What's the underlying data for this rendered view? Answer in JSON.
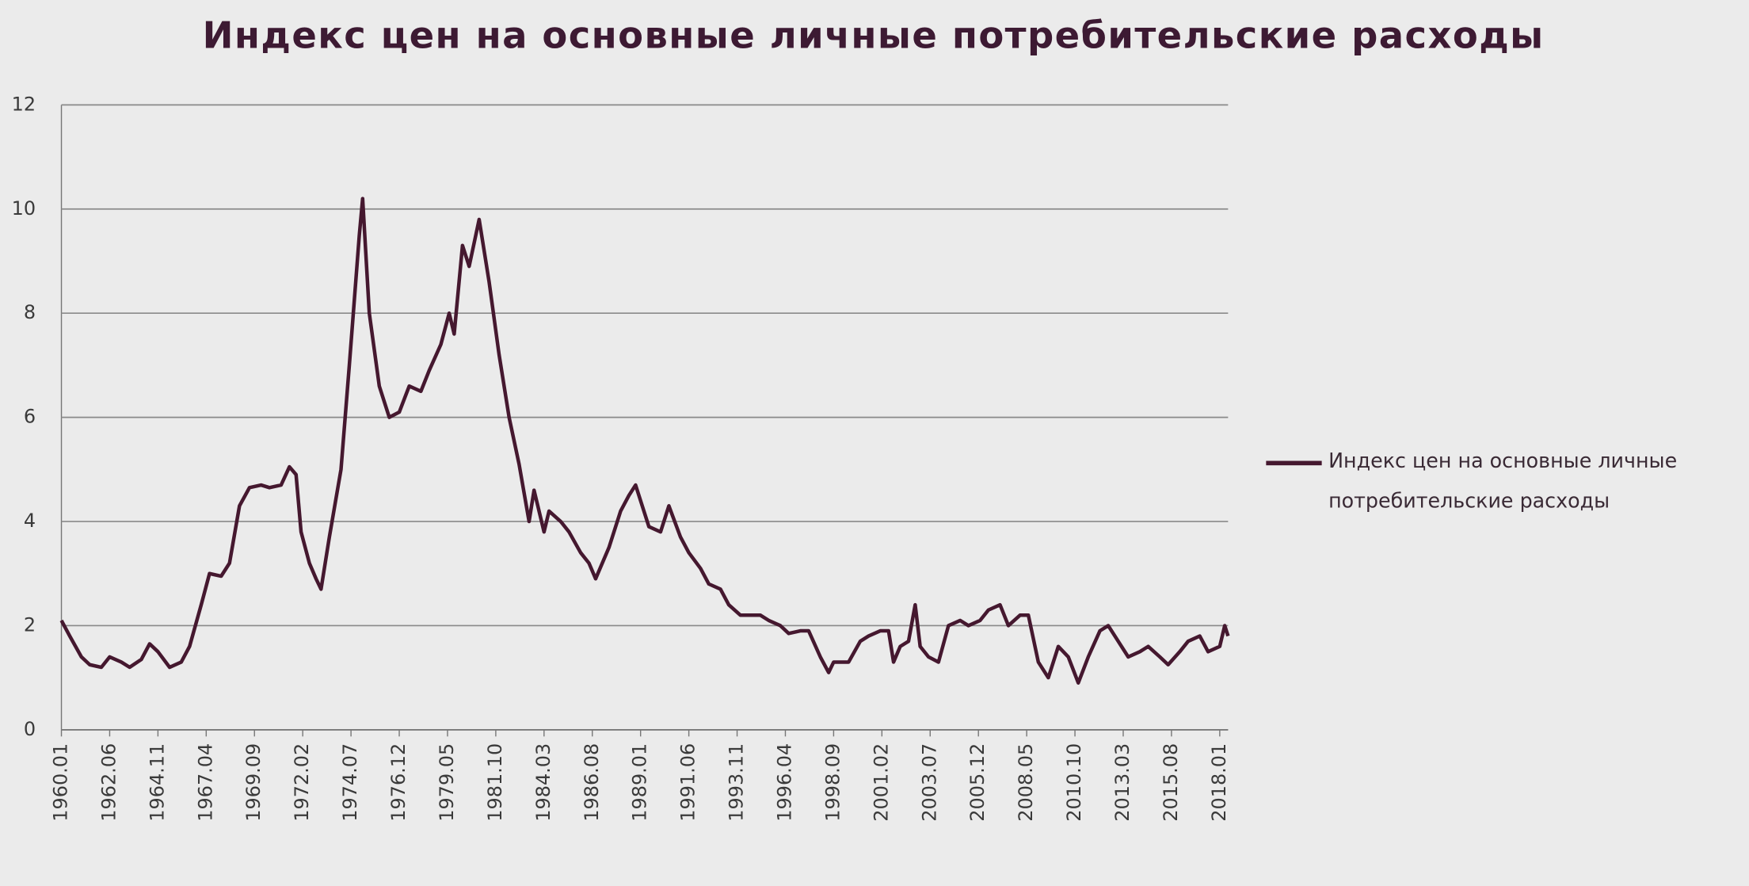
{
  "chart_data": {
    "type": "line",
    "title": "Индекс цен на основные личные потребительские расходы",
    "x": [
      "1960.01",
      "1960.06",
      "1961.01",
      "1961.06",
      "1962.01",
      "1962.06",
      "1963.01",
      "1963.06",
      "1964.01",
      "1964.06",
      "1964.11",
      "1965.06",
      "1966.01",
      "1966.06",
      "1967.01",
      "1967.06",
      "1968.01",
      "1968.06",
      "1968.12",
      "1969.06",
      "1970.01",
      "1970.06",
      "1971.01",
      "1971.06",
      "1971.10",
      "1972.01",
      "1972.06",
      "1972.10",
      "1973.01",
      "1973.06",
      "1974.01",
      "1974.06",
      "1974.12",
      "1975.02",
      "1975.06",
      "1975.12",
      "1976.06",
      "1976.12",
      "1977.06",
      "1978.01",
      "1978.06",
      "1979.01",
      "1979.06",
      "1979.09",
      "1980.02",
      "1980.06",
      "1980.12",
      "1981.06",
      "1981.12",
      "1982.06",
      "1982.12",
      "1983.06",
      "1983.09",
      "1984.03",
      "1984.06",
      "1985.01",
      "1985.06",
      "1986.01",
      "1986.06",
      "1986.10",
      "1987.06",
      "1988.01",
      "1988.06",
      "1988.10",
      "1989.06",
      "1990.01",
      "1990.06",
      "1991.01",
      "1991.06",
      "1992.01",
      "1992.06",
      "1993.01",
      "1993.06",
      "1994.01",
      "1994.06",
      "1995.01",
      "1995.06",
      "1996.01",
      "1996.06",
      "1997.01",
      "1997.06",
      "1998.01",
      "1998.06",
      "1998.09",
      "1999.06",
      "2000.01",
      "2000.06",
      "2001.01",
      "2001.06",
      "2001.09",
      "2002.01",
      "2002.06",
      "2002.10",
      "2003.01",
      "2003.06",
      "2003.12",
      "2004.06",
      "2005.01",
      "2005.06",
      "2006.01",
      "2006.06",
      "2007.01",
      "2007.06",
      "2008.01",
      "2008.06",
      "2008.12",
      "2009.06",
      "2009.12",
      "2010.06",
      "2010.12",
      "2011.06",
      "2012.01",
      "2012.06",
      "2012.12",
      "2013.06",
      "2014.01",
      "2014.06",
      "2015.01",
      "2015.06",
      "2016.01",
      "2016.06",
      "2017.01",
      "2017.06",
      "2018.01",
      "2018.04",
      "2018.06"
    ],
    "series": [
      {
        "name": "Индекс цен на основные личные потребительские расходы",
        "color": "#45182f",
        "values": [
          2.1,
          1.8,
          1.4,
          1.25,
          1.2,
          1.4,
          1.3,
          1.2,
          1.35,
          1.65,
          1.5,
          1.2,
          1.3,
          1.6,
          2.4,
          3.0,
          2.95,
          3.2,
          4.3,
          4.65,
          4.7,
          4.65,
          4.7,
          5.05,
          4.9,
          3.8,
          3.2,
          2.9,
          2.7,
          3.7,
          5.0,
          7.0,
          9.5,
          10.2,
          8.0,
          6.6,
          6.0,
          6.1,
          6.6,
          6.5,
          6.9,
          7.4,
          8.0,
          7.6,
          9.3,
          8.9,
          9.8,
          8.6,
          7.2,
          6.0,
          5.1,
          4.0,
          4.6,
          3.8,
          4.2,
          4.0,
          3.8,
          3.4,
          3.2,
          2.9,
          3.5,
          4.2,
          4.5,
          4.7,
          3.9,
          3.8,
          4.3,
          3.7,
          3.4,
          3.1,
          2.8,
          2.7,
          2.4,
          2.2,
          2.2,
          2.2,
          2.1,
          2.0,
          1.85,
          1.9,
          1.9,
          1.4,
          1.1,
          1.3,
          1.3,
          1.7,
          1.8,
          1.9,
          1.9,
          1.3,
          1.6,
          1.7,
          2.4,
          1.6,
          1.4,
          1.3,
          2.0,
          2.1,
          2.0,
          2.1,
          2.3,
          2.4,
          2.0,
          2.2,
          2.2,
          1.3,
          1.0,
          1.6,
          1.4,
          0.9,
          1.4,
          1.9,
          2.0,
          1.7,
          1.4,
          1.5,
          1.6,
          1.4,
          1.25,
          1.5,
          1.7,
          1.8,
          1.5,
          1.6,
          2.0,
          1.8
        ]
      }
    ],
    "xlim": [
      "1960.01",
      "2018.06"
    ],
    "xticks": [
      "1960.01",
      "1962.06",
      "1964.11",
      "1967.04",
      "1969.09",
      "1972.02",
      "1974.07",
      "1976.12",
      "1979.05",
      "1981.10",
      "1984.03",
      "1986.08",
      "1989.01",
      "1991.06",
      "1993.11",
      "1996.04",
      "1998.09",
      "2001.02",
      "2003.07",
      "2005.12",
      "2008.05",
      "2010.10",
      "2013.03",
      "2015.08",
      "2018.01"
    ],
    "ylim": [
      0,
      12
    ],
    "yticks": [
      0,
      2,
      4,
      6,
      8,
      10,
      12
    ],
    "grid": true
  }
}
